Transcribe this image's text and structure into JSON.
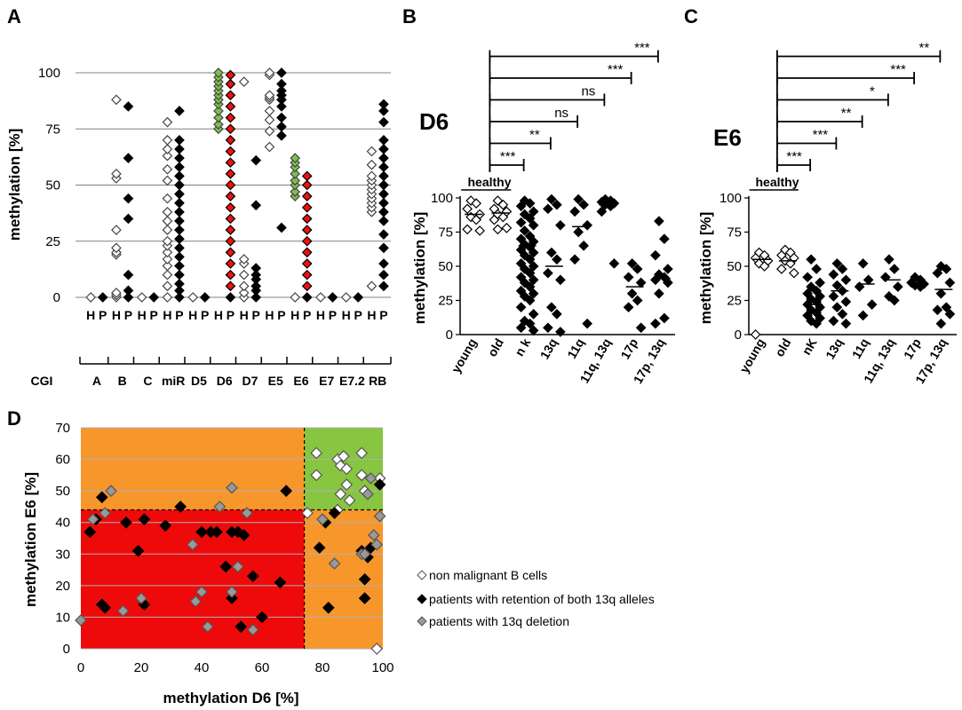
{
  "panels": {
    "A": {
      "letter": "A",
      "ylabel": "methylation [%]",
      "yticks": [
        "0",
        "25",
        "50",
        "75",
        "100"
      ],
      "group_label": "CGI",
      "groups": [
        "A",
        "B",
        "C",
        "miR",
        "D5",
        "D6",
        "D7",
        "E5",
        "E6",
        "E7",
        "E7.2",
        "RB"
      ],
      "sublabels": [
        "H",
        "P"
      ]
    },
    "B": {
      "letter": "B",
      "title": "D6",
      "ylabel": "methylation [%]",
      "yticks": [
        "0",
        "25",
        "50",
        "75",
        "100"
      ],
      "healthy_label": "healthy",
      "categories": [
        "young",
        "old",
        "n k",
        "13q",
        "11q",
        "11q, 13q",
        "17p",
        "17p, 13q"
      ],
      "significance": [
        "***",
        "**",
        "ns",
        "ns",
        "***",
        "***"
      ]
    },
    "C": {
      "letter": "C",
      "title": "E6",
      "ylabel": "methylation [%]",
      "yticks": [
        "0",
        "25",
        "50",
        "75",
        "100"
      ],
      "healthy_label": "healthy",
      "categories": [
        "young",
        "old",
        "nK",
        "13q",
        "11q",
        "11q, 13q",
        "17p",
        "17p, 13q"
      ],
      "significance": [
        "***",
        "***",
        "**",
        "*",
        "***",
        "**"
      ]
    },
    "D": {
      "letter": "D",
      "xlabel": "methylation D6 [%]",
      "ylabel": "methylation E6 [%]",
      "xticks": [
        "0",
        "20",
        "40",
        "60",
        "80",
        "100"
      ],
      "yticks": [
        "0",
        "10",
        "20",
        "30",
        "40",
        "50",
        "60",
        "70"
      ],
      "legend": [
        "non malignant B cells",
        "patients with retention of both 13q alleles",
        "patients with 13q deletion"
      ]
    }
  },
  "chart_data": [
    {
      "panel": "A",
      "type": "scatter",
      "ylabel": "methylation [%]",
      "ylim": [
        0,
        100
      ],
      "categories": [
        "A",
        "B",
        "C",
        "miR",
        "D5",
        "D6",
        "D7",
        "E5",
        "E6",
        "E7",
        "E7.2",
        "RB"
      ],
      "series": [
        {
          "name": "H",
          "color": "#ffffff",
          "values": [
            [
              0
            ],
            [
              0,
              1,
              2,
              19,
              20,
              22,
              30,
              53,
              55,
              88
            ],
            [
              0
            ],
            [
              0,
              5,
              10,
              14,
              17,
              20,
              23,
              25,
              30,
              34,
              38,
              44,
              52,
              57,
              63,
              66,
              70,
              78
            ],
            [
              0
            ],
            [
              75,
              77,
              80,
              83,
              86,
              88,
              90,
              92,
              94,
              96,
              98,
              100
            ],
            [
              0,
              2,
              5,
              10,
              15,
              17,
              96
            ],
            [
              67,
              74,
              79,
              83,
              88,
              89,
              90,
              99,
              100
            ],
            [
              0,
              45,
              47,
              50,
              52,
              55,
              58,
              60,
              62
            ],
            [
              0
            ],
            [
              0
            ],
            [
              5,
              38,
              40,
              42,
              44,
              46,
              48,
              50,
              52,
              54,
              59,
              65
            ]
          ]
        },
        {
          "name": "P",
          "color": "#000000",
          "values": [
            [
              0
            ],
            [
              0,
              3,
              10,
              35,
              44,
              62,
              85
            ],
            [
              0
            ],
            [
              0,
              3,
              6,
              10,
              14,
              18,
              22,
              26,
              30,
              34,
              38,
              42,
              46,
              50,
              54,
              58,
              62,
              66,
              70,
              83
            ],
            [
              0
            ],
            [
              0,
              5,
              10,
              15,
              20,
              25,
              30,
              35,
              40,
              45,
              50,
              55,
              60,
              65,
              70,
              75,
              80,
              85,
              90,
              95,
              99
            ],
            [
              0,
              3,
              5,
              8,
              10,
              13,
              41,
              61
            ],
            [
              31,
              72,
              76,
              80,
              85,
              88,
              90,
              92,
              95,
              100
            ],
            [
              0,
              5,
              10,
              15,
              20,
              25,
              30,
              35,
              40,
              45,
              50,
              54
            ],
            [
              0
            ],
            [
              0
            ],
            [
              5,
              10,
              15,
              22,
              28,
              34,
              38,
              42,
              46,
              50,
              54,
              58,
              62,
              66,
              70,
              78,
              83,
              86
            ]
          ]
        }
      ]
    },
    {
      "panel": "B",
      "type": "scatter",
      "title": "D6",
      "ylabel": "methylation [%]",
      "ylim": [
        0,
        100
      ],
      "categories": [
        "young",
        "old",
        "n k",
        "13q",
        "11q",
        "11q, 13q",
        "17p",
        "17p, 13q"
      ],
      "values": [
        [
          98,
          96,
          92,
          88,
          86,
          84,
          77,
          76
        ],
        [
          98,
          95,
          92,
          90,
          88,
          86,
          84,
          78,
          77
        ],
        [
          98,
          96,
          94,
          90,
          88,
          85,
          82,
          80,
          76,
          72,
          70,
          68,
          66,
          64,
          62,
          60,
          58,
          55,
          52,
          50,
          48,
          45,
          42,
          40,
          38,
          35,
          32,
          30,
          28,
          25,
          20,
          15,
          10,
          8,
          5,
          3
        ],
        [
          99,
          95,
          92,
          80,
          60,
          55,
          45,
          40,
          20,
          15,
          5,
          2
        ],
        [
          99,
          95,
          90,
          80,
          75,
          65,
          55,
          8
        ],
        [
          99,
          98,
          97,
          96,
          95,
          94,
          90,
          52
        ],
        [
          52,
          48,
          42,
          38,
          30,
          25,
          20,
          5
        ],
        [
          83,
          70,
          58,
          48,
          44,
          42,
          40,
          38,
          30,
          12,
          8
        ]
      ],
      "medians": [
        88,
        89,
        65,
        50,
        79,
        95,
        35,
        41
      ],
      "comparisons": [
        {
          "from": "young",
          "to": "n k",
          "label": "***"
        },
        {
          "from": "young",
          "to": "13q",
          "label": "**"
        },
        {
          "from": "young",
          "to": "11q",
          "label": "ns"
        },
        {
          "from": "young",
          "to": "11q, 13q",
          "label": "ns"
        },
        {
          "from": "young",
          "to": "17p",
          "label": "***"
        },
        {
          "from": "young",
          "to": "17p, 13q",
          "label": "***"
        }
      ]
    },
    {
      "panel": "C",
      "type": "scatter",
      "title": "E6",
      "ylabel": "methylation [%]",
      "ylim": [
        0,
        100
      ],
      "categories": [
        "young",
        "old",
        "nK",
        "13q",
        "11q",
        "11q, 13q",
        "17p",
        "17p, 13q"
      ],
      "values": [
        [
          60,
          58,
          56,
          54,
          52,
          50,
          0
        ],
        [
          62,
          60,
          58,
          56,
          54,
          52,
          48,
          45
        ],
        [
          55,
          48,
          42,
          38,
          35,
          32,
          30,
          28,
          26,
          24,
          22,
          20,
          18,
          16,
          14,
          12,
          10,
          8
        ],
        [
          52,
          48,
          44,
          40,
          36,
          32,
          28,
          24,
          20,
          15,
          10,
          8
        ],
        [
          52,
          40,
          35,
          22,
          14
        ],
        [
          55,
          48,
          42,
          35,
          28,
          25
        ],
        [
          42,
          40,
          38,
          37,
          36,
          35
        ],
        [
          50,
          48,
          45,
          38,
          30,
          20,
          18,
          15,
          8
        ]
      ],
      "medians": [
        55,
        54,
        22,
        32,
        37,
        40,
        38,
        33
      ],
      "comparisons": [
        {
          "from": "young",
          "to": "nK",
          "label": "***"
        },
        {
          "from": "young",
          "to": "13q",
          "label": "***"
        },
        {
          "from": "young",
          "to": "11q",
          "label": "**"
        },
        {
          "from": "young",
          "to": "11q, 13q",
          "label": "*"
        },
        {
          "from": "young",
          "to": "17p",
          "label": "***"
        },
        {
          "from": "young",
          "to": "17p, 13q",
          "label": "**"
        }
      ]
    },
    {
      "panel": "D",
      "type": "scatter",
      "xlabel": "methylation D6 [%]",
      "ylabel": "methylation E6 [%]",
      "xlim": [
        0,
        100
      ],
      "ylim": [
        0,
        70
      ],
      "thresholds": {
        "x": 74,
        "y": 44
      },
      "series": [
        {
          "name": "non malignant B cells",
          "color": "#ffffff",
          "points": [
            [
              75,
              43
            ],
            [
              78,
              62
            ],
            [
              78,
              55
            ],
            [
              85,
              60
            ],
            [
              86,
              58
            ],
            [
              87,
              61
            ],
            [
              88,
              57
            ],
            [
              86,
              49
            ],
            [
              88,
              52
            ],
            [
              89,
              47
            ],
            [
              85,
              44
            ],
            [
              93,
              62
            ],
            [
              93,
              55
            ],
            [
              94,
              50
            ],
            [
              99,
              54
            ],
            [
              98,
              0
            ]
          ]
        },
        {
          "name": "patients with retention of both 13q alleles",
          "color": "#000000",
          "points": [
            [
              3,
              37
            ],
            [
              5,
              41
            ],
            [
              7,
              48
            ],
            [
              7,
              14
            ],
            [
              8,
              13
            ],
            [
              15,
              40
            ],
            [
              19,
              31
            ],
            [
              21,
              41
            ],
            [
              21,
              14
            ],
            [
              28,
              39
            ],
            [
              33,
              45
            ],
            [
              40,
              37
            ],
            [
              43,
              37
            ],
            [
              45,
              37
            ],
            [
              50,
              37
            ],
            [
              52,
              37
            ],
            [
              54,
              36
            ],
            [
              48,
              26
            ],
            [
              50,
              16
            ],
            [
              53,
              7
            ],
            [
              57,
              23
            ],
            [
              60,
              10
            ],
            [
              66,
              21
            ],
            [
              68,
              50
            ],
            [
              79,
              32
            ],
            [
              81,
              40
            ],
            [
              82,
              13
            ],
            [
              84,
              43
            ],
            [
              93,
              31
            ],
            [
              94,
              22
            ],
            [
              94,
              16
            ],
            [
              95,
              29
            ],
            [
              96,
              32
            ],
            [
              99,
              52
            ]
          ]
        },
        {
          "name": "patients with 13q deletion",
          "color": "#999999",
          "points": [
            [
              0,
              9
            ],
            [
              4,
              41
            ],
            [
              8,
              43
            ],
            [
              10,
              50
            ],
            [
              14,
              12
            ],
            [
              20,
              16
            ],
            [
              37,
              33
            ],
            [
              38,
              15
            ],
            [
              40,
              18
            ],
            [
              42,
              7
            ],
            [
              46,
              45
            ],
            [
              50,
              18
            ],
            [
              50,
              51
            ],
            [
              52,
              26
            ],
            [
              55,
              43
            ],
            [
              57,
              6
            ],
            [
              80,
              41
            ],
            [
              84,
              27
            ],
            [
              93,
              30
            ],
            [
              94,
              30
            ],
            [
              95,
              49
            ],
            [
              96,
              54
            ],
            [
              97,
              36
            ],
            [
              98,
              33
            ],
            [
              99,
              42
            ]
          ]
        }
      ]
    }
  ]
}
